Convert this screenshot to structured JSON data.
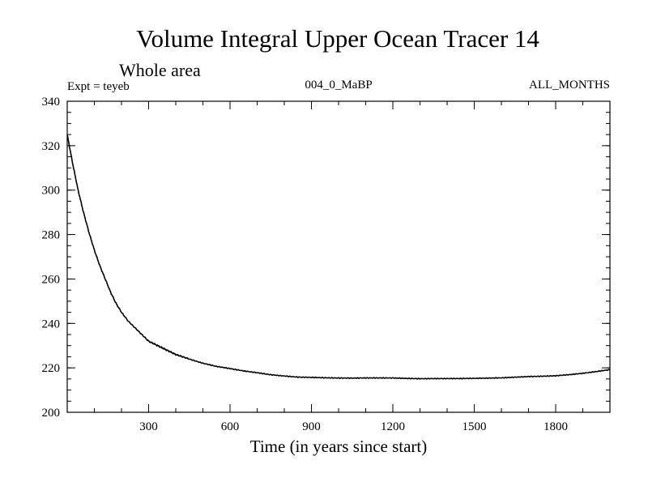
{
  "chart_data": {
    "type": "line",
    "title": "Volume Integral Upper Ocean Tracer 14",
    "subtitle": "Whole area",
    "experiment_label": "Expt = teyeb",
    "run_label": "004_0_MaBP",
    "period_label": "ALL_MONTHS",
    "xlabel": "Time (in years since start)",
    "ylabel": "",
    "xlim": [
      0,
      2000
    ],
    "ylim": [
      200,
      340
    ],
    "x_ticks": [
      300,
      600,
      900,
      1200,
      1500,
      1800
    ],
    "y_ticks": [
      200,
      220,
      240,
      260,
      280,
      300,
      320,
      340
    ],
    "x_minor_step": 100,
    "y_minor_step": 5,
    "grid": false,
    "series": [
      {
        "name": "Volume Integral Upper Ocean Tracer 14",
        "color": "#000000",
        "x": [
          0,
          20,
          40,
          60,
          80,
          100,
          120,
          140,
          160,
          180,
          200,
          225,
          250,
          275,
          300,
          325,
          350,
          375,
          400,
          425,
          450,
          500,
          550,
          600,
          650,
          700,
          750,
          800,
          850,
          900,
          950,
          1000,
          1050,
          1100,
          1150,
          1200,
          1250,
          1300,
          1350,
          1400,
          1450,
          1500,
          1550,
          1600,
          1650,
          1700,
          1750,
          1800,
          1850,
          1900,
          1950,
          2000
        ],
        "y": [
          325,
          312,
          300,
          290,
          281,
          273,
          266,
          260,
          254,
          249,
          245,
          241,
          238,
          235,
          232,
          230.5,
          229,
          227.5,
          226,
          225,
          224,
          222,
          220.5,
          219.5,
          218.5,
          217.8,
          217,
          216.5,
          216,
          215.8,
          215.5,
          215.3,
          215.2,
          215.3,
          215.4,
          215.5,
          215.4,
          215.3,
          215.3,
          215.2,
          215.1,
          215.1,
          215.2,
          215.4,
          215.8,
          216.2,
          216.4,
          216.6,
          217,
          217.5,
          218.2,
          219
        ]
      }
    ]
  }
}
